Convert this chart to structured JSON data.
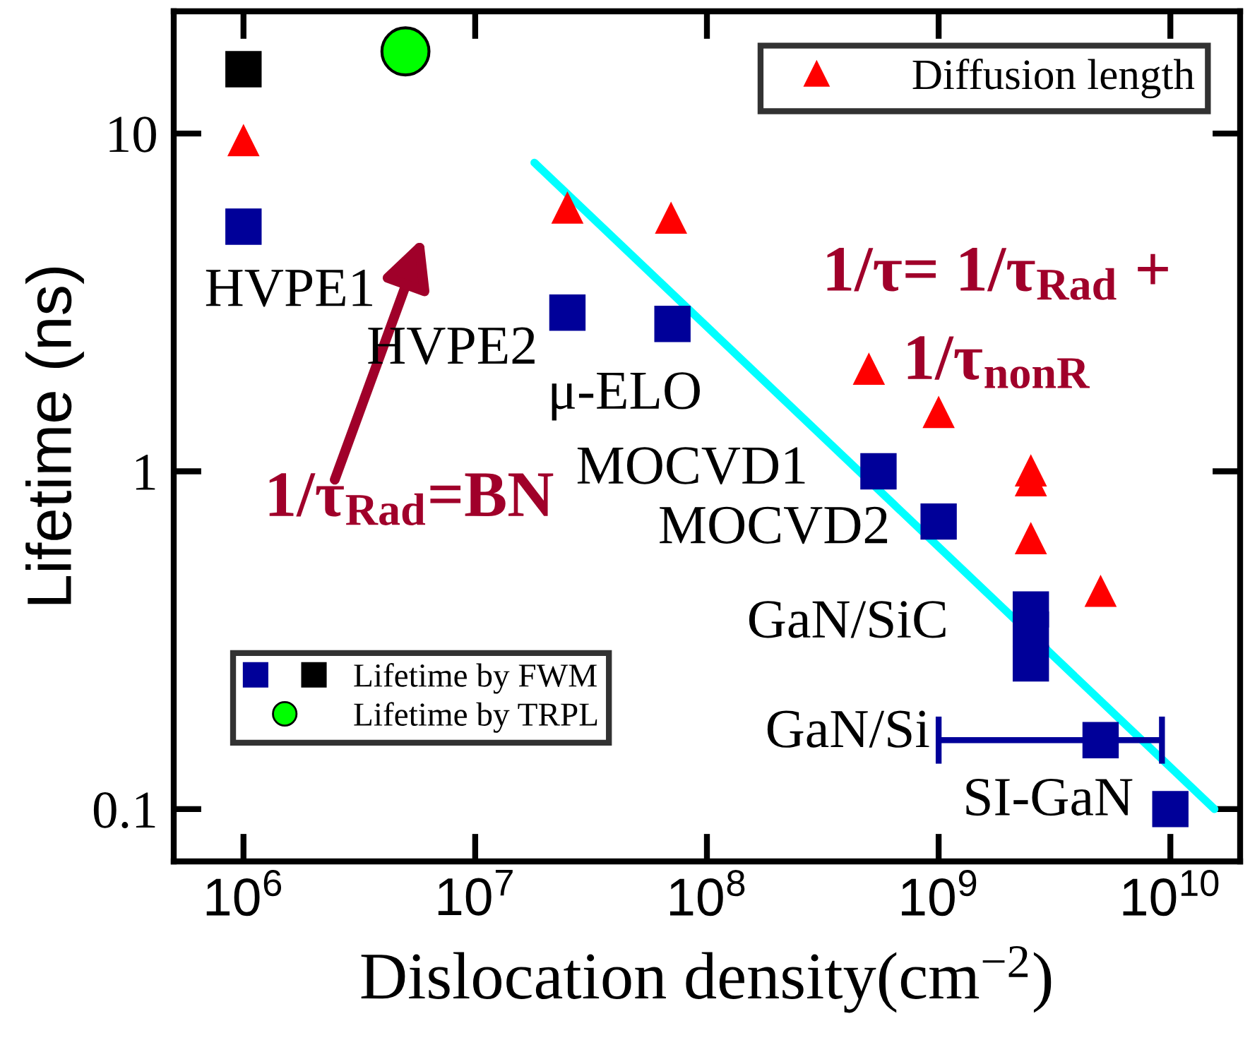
{
  "chart_data": {
    "type": "scatter",
    "xlabel": "Dislocation density(cm$^{−2}$)",
    "ylabel": "Lifetime (ns)",
    "log": "xy",
    "xlim": [
      500000,
      20000000000
    ],
    "ylim": [
      0.07,
      23
    ],
    "xticks": [
      {
        "value": 1000000,
        "label": "10$^{6}$"
      },
      {
        "value": 10000000,
        "label": "10$^{7}$"
      },
      {
        "value": 100000000,
        "label": "10$^{8}$"
      },
      {
        "value": 1000000000,
        "label": "10$^{9}$"
      },
      {
        "value": 10000000000,
        "label": "10$^{10}$"
      }
    ],
    "yticks": [
      0.1,
      1,
      10
    ],
    "grid": false,
    "legend": [
      "top right",
      "bottom left"
    ],
    "series": [
      {
        "name": "Diffusion length",
        "color": "#ff0000",
        "marker": "triangle",
        "x": [
          1000000,
          25000000,
          70000000,
          500000000,
          1000000000,
          2500000000,
          2500000000,
          2500000000,
          5000000000
        ],
        "values": [
          9.5,
          6.0,
          5.6,
          2.0,
          1.49,
          1.0,
          0.935,
          0.63,
          0.44
        ]
      },
      {
        "name": "Lifetime by FWM",
        "color": "#000099",
        "marker": "square",
        "x": [
          1000000,
          25000000,
          71000000,
          550000000,
          1000000000,
          2500000000,
          2500000000,
          2500000000,
          5000000000,
          10000000000,
          1000000
        ],
        "values": [
          5.3,
          2.95,
          2.73,
          1.0,
          0.71,
          0.39,
          0.34,
          0.27,
          0.16,
          0.1,
          15.5
        ],
        "colors": [
          "#000099",
          "#000099",
          "#000099",
          "#000099",
          "#000099",
          "#000099",
          "#000099",
          "#000099",
          "#000099",
          "#000099",
          "#000000"
        ],
        "xerrors": [
          null,
          null,
          null,
          null,
          null,
          null,
          null,
          null,
          [
            1000000000,
            9200000000
          ],
          null,
          null
        ]
      },
      {
        "name": "Lifetime by TRPL",
        "color": "#00ff00",
        "marker": "circle",
        "x": [
          5000000
        ],
        "values": [
          17.5
        ]
      },
      {
        "type": "line",
        "color": "#00ffff",
        "marker": "none",
        "x": [
          18000000,
          15500000000
        ],
        "values": [
          8.2,
          0.1
        ]
      }
    ],
    "annotations": [
      "HVPE1",
      "HVPE2",
      "μ-ELO",
      "MOCVD1",
      "MOCVD2",
      "GaN/SiC",
      "GaN/Si",
      "SI-GaN",
      "1/τ$_{Rad}$=BN",
      "1/τ= 1/τ$_{Rad}$ +",
      "1/τ$_{nonR}$"
    ]
  }
}
